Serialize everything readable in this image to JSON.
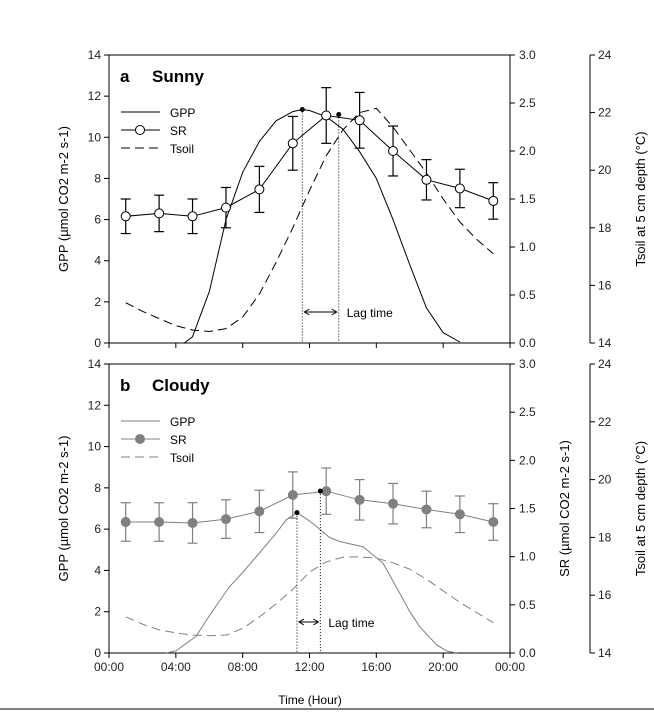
{
  "chart_data": [
    {
      "type": "line",
      "panel_label": "a",
      "title": "Sunny",
      "xlabel": "",
      "ylabel": "GPP (µmol CO2 m-2 s-1)",
      "y2label": "",
      "y3label": "Tsoil at 5 cm depth (°C)",
      "xlim": [
        0,
        24
      ],
      "ylim": [
        0,
        14
      ],
      "y2lim": [
        0,
        3.0
      ],
      "y3lim": [
        14,
        24
      ],
      "xticks": [
        "00:00",
        "04:00",
        "08:00",
        "12:00",
        "16:00",
        "20:00",
        "00:00"
      ],
      "yticks": [
        "0",
        "2",
        "4",
        "6",
        "8",
        "10",
        "12",
        "14"
      ],
      "y2ticks": [
        "0.0",
        "0.5",
        "1.0",
        "1.5",
        "2.0",
        "2.5",
        "3.0"
      ],
      "y3ticks": [
        "14",
        "16",
        "18",
        "20",
        "22",
        "24"
      ],
      "legend": [
        "GPP",
        "SR",
        "Tsoil"
      ],
      "legend_position": "top-left",
      "annotation": "Lag time",
      "color": "#000000",
      "series": {
        "GPP": {
          "axis": "left",
          "x": [
            1.5,
            2,
            3,
            4,
            4.5,
            5,
            6,
            7,
            8,
            9,
            10,
            11,
            11.57,
            12,
            13,
            14,
            15,
            16,
            17,
            18,
            19,
            20,
            21
          ],
          "y": [
            0,
            0,
            0,
            0,
            0,
            0.3,
            2.5,
            6.0,
            8.3,
            9.8,
            10.8,
            11.25,
            11.35,
            11.3,
            11.0,
            10.4,
            9.3,
            8.0,
            6.0,
            3.8,
            1.7,
            0.5,
            0.05
          ]
        },
        "SR": {
          "axis": "right",
          "x": [
            1,
            3,
            5,
            7,
            9,
            11,
            13,
            15,
            17,
            19,
            21,
            23
          ],
          "y": [
            1.32,
            1.35,
            1.32,
            1.41,
            1.6,
            2.08,
            2.37,
            2.32,
            2.0,
            1.7,
            1.61,
            1.48
          ],
          "err": [
            0.18,
            0.19,
            0.18,
            0.21,
            0.24,
            0.28,
            0.29,
            0.29,
            0.26,
            0.21,
            0.2,
            0.19
          ]
        },
        "Tsoil": {
          "axis": "far-right",
          "x": [
            1,
            2,
            3,
            4,
            5,
            6,
            7,
            8,
            9,
            10,
            11,
            12,
            13,
            14,
            15,
            16,
            17,
            18,
            19,
            20,
            21,
            22,
            23
          ],
          "y": [
            15.4,
            15.1,
            14.85,
            14.6,
            14.45,
            14.4,
            14.5,
            14.9,
            15.7,
            16.8,
            18.0,
            19.3,
            20.5,
            21.4,
            22.0,
            22.15,
            21.5,
            20.7,
            19.9,
            19.0,
            18.2,
            17.6,
            17.1
          ]
        }
      },
      "peaks": {
        "gpp": [
          11.57,
          11.35
        ],
        "sr": [
          13.75,
          2.38
        ]
      }
    },
    {
      "type": "line",
      "panel_label": "b",
      "title": "Cloudy",
      "xlabel": "Time (Hour)",
      "ylabel": "GPP (µmol CO2 m-2 s-1)",
      "y2label": "SR (µmol CO2 m-2 s-1)",
      "y3label": "Tsoil at 5 cm depth (°C)",
      "xlim": [
        0,
        24
      ],
      "ylim": [
        0,
        14
      ],
      "y2lim": [
        0,
        3.0
      ],
      "y3lim": [
        14,
        24
      ],
      "xticks": [
        "00:00",
        "04:00",
        "08:00",
        "12:00",
        "16:00",
        "20:00",
        "00:00"
      ],
      "yticks": [
        "0",
        "2",
        "4",
        "6",
        "8",
        "10",
        "12",
        "14"
      ],
      "y2ticks": [
        "0.0",
        "0.5",
        "1.0",
        "1.5",
        "2.0",
        "2.5",
        "3.0"
      ],
      "y3ticks": [
        "14",
        "16",
        "18",
        "20",
        "22",
        "24"
      ],
      "legend": [
        "GPP",
        "SR",
        "Tsoil"
      ],
      "legend_position": "top-left",
      "annotation": "Lag time",
      "color": "#808080",
      "series": {
        "GPP": {
          "axis": "left",
          "x": [
            3.4,
            4,
            5.2,
            6,
            7.2,
            8,
            8.8,
            10,
            10.6,
            11.25,
            12,
            12.6,
            13.2,
            13.8,
            15.2,
            16.4,
            17.4,
            18,
            18.6,
            19.6,
            20.2,
            20.8
          ],
          "y": [
            0,
            0.1,
            0.8,
            1.8,
            3.2,
            3.9,
            4.65,
            5.8,
            6.45,
            6.8,
            6.4,
            6.0,
            5.6,
            5.4,
            5.15,
            4.35,
            2.9,
            2.0,
            1.27,
            0.4,
            0.1,
            0
          ]
        },
        "SR": {
          "axis": "right",
          "x": [
            1,
            3,
            5,
            7,
            9,
            11,
            13,
            15,
            17,
            19,
            21,
            23
          ],
          "y": [
            1.36,
            1.36,
            1.35,
            1.39,
            1.47,
            1.64,
            1.68,
            1.59,
            1.55,
            1.49,
            1.44,
            1.36
          ],
          "err": [
            0.2,
            0.2,
            0.21,
            0.2,
            0.22,
            0.24,
            0.24,
            0.21,
            0.21,
            0.19,
            0.19,
            0.19
          ]
        },
        "Tsoil": {
          "axis": "far-right",
          "x": [
            1,
            2,
            3,
            4,
            5,
            6,
            7,
            8,
            9,
            10,
            11,
            12,
            13,
            14,
            15,
            16,
            17,
            18,
            19,
            20,
            21,
            22,
            23
          ],
          "y": [
            15.25,
            15.0,
            14.8,
            14.7,
            14.62,
            14.6,
            14.62,
            14.85,
            15.25,
            15.7,
            16.2,
            16.8,
            17.15,
            17.32,
            17.33,
            17.28,
            17.12,
            16.9,
            16.55,
            16.15,
            15.75,
            15.4,
            15.05
          ]
        }
      },
      "peaks": {
        "gpp": [
          11.25,
          6.8
        ],
        "sr": [
          12.65,
          1.68
        ]
      }
    }
  ]
}
